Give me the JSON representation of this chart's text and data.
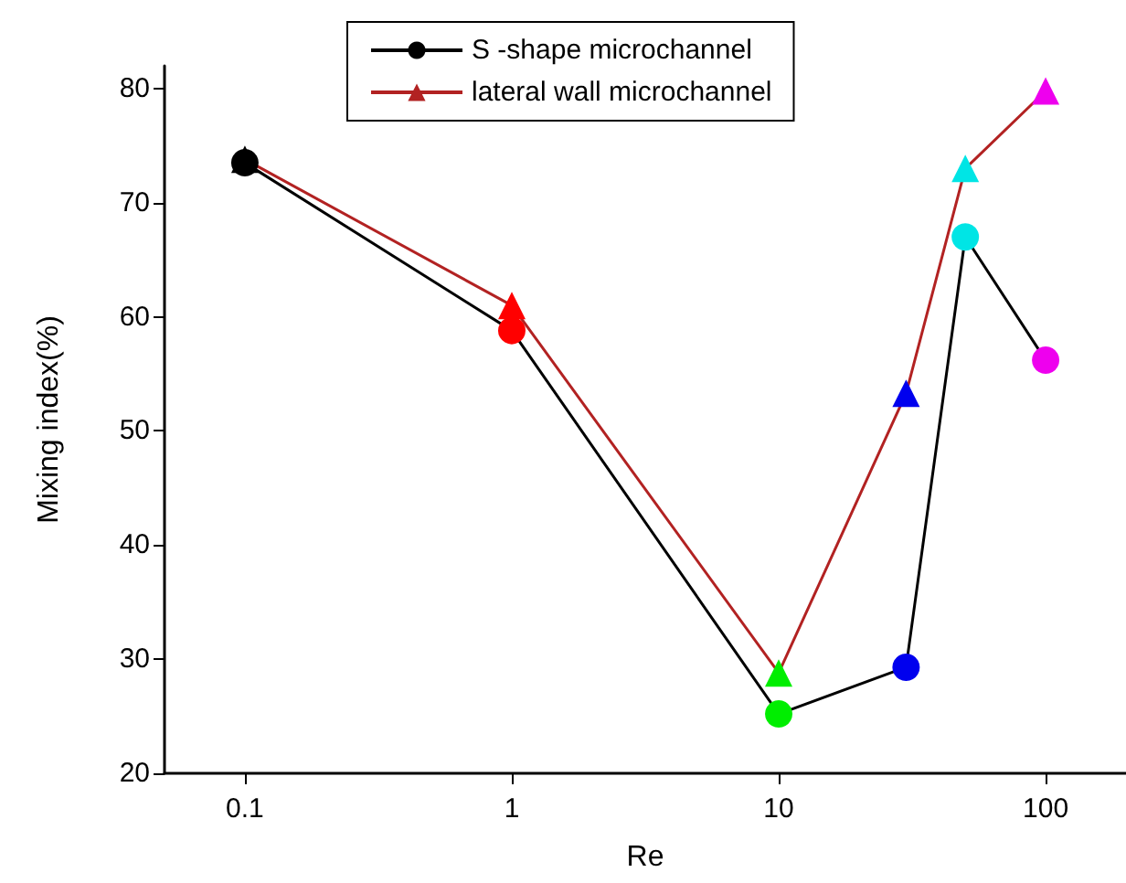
{
  "chart_data": {
    "type": "line",
    "xlabel": "Re",
    "ylabel": "Mixing index(%)",
    "x": [
      0.1,
      1,
      10,
      30,
      50,
      100
    ],
    "log": "x",
    "xlim": [
      0.05,
      200
    ],
    "xticks": [
      0.1,
      1,
      10,
      100
    ],
    "ylim": [
      20,
      82
    ],
    "yticks": [
      20,
      30,
      40,
      50,
      60,
      70,
      80
    ],
    "grid": false,
    "legend": "top left",
    "series": [
      {
        "name": "S -shape microchannel",
        "color": "#000000",
        "marker": "circle",
        "values": [
          73.5,
          58.8,
          25.2,
          29.3,
          67,
          56.2
        ],
        "colors": [
          "#000000",
          "#ff0000",
          "#00ee00",
          "#0000ee",
          "#00e5e5",
          "#ee00ee"
        ]
      },
      {
        "name": "lateral wall microchannel",
        "color": "#b22222",
        "marker": "triangle",
        "values": [
          73.8,
          61,
          28.8,
          53.3,
          73,
          79.8
        ],
        "colors": [
          "#000000",
          "#ff0000",
          "#00ee00",
          "#0000ee",
          "#00e5e5",
          "#ee00ee"
        ]
      }
    ]
  }
}
